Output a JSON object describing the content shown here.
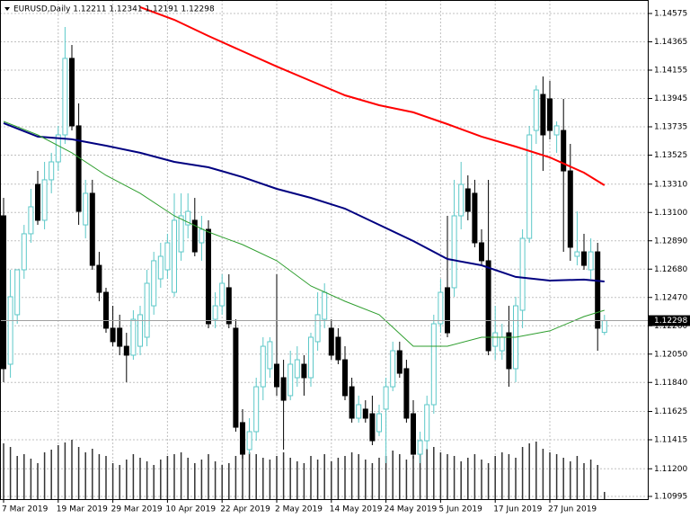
{
  "chart_data": {
    "type": "candlestick",
    "header": "EURUSD,Daily  1.12211 1.12341 1.12191 1.12298",
    "ylim": [
      1.10975,
      1.14675
    ],
    "yticks": [
      1.14575,
      1.14365,
      1.14155,
      1.13945,
      1.13735,
      1.13525,
      {
        "value": 1.1331,
        "label": "1.13310"
      },
      {
        "value": 1.131,
        "label": "1.13100"
      },
      {
        "value": 1.1289,
        "label": "1.12890"
      },
      {
        "value": 1.1268,
        "label": "1.12680"
      },
      {
        "value": 1.1247,
        "label": "1.12470"
      },
      {
        "value": 1.1226,
        "label": "1.12260"
      },
      {
        "value": 1.1205,
        "label": "1.12050"
      },
      {
        "value": 1.1184,
        "label": "1.11840"
      },
      1.11625,
      1.11415,
      {
        "value": 1.112,
        "label": "1.11200"
      },
      1.10995
    ],
    "xticks": [
      {
        "value": 0,
        "label": "7 Mar 2019"
      },
      {
        "value": 8,
        "label": "19 Mar 2019"
      },
      {
        "value": 16,
        "label": "29 Mar 2019"
      },
      {
        "value": 24,
        "label": "10 Apr 2019"
      },
      {
        "value": 32,
        "label": "22 Apr 2019"
      },
      {
        "value": 40,
        "label": "2 May 2019"
      },
      {
        "value": 48,
        "label": "14 May 2019"
      },
      {
        "value": 56,
        "label": "24 May 2019"
      },
      {
        "value": 64,
        "label": "5 Jun 2019"
      },
      {
        "value": 72,
        "label": "17 Jun 2019"
      },
      {
        "value": 80,
        "label": "27 Jun 2019"
      }
    ],
    "grid": true,
    "bull_color": "#5cc8c8",
    "bear_color": "#000000",
    "candles": {
      "open": [
        1.13075,
        1.11975,
        1.12342,
        1.12675,
        1.12942,
        1.13308,
        1.13042,
        1.13342,
        1.13475,
        1.13675,
        1.14242,
        1.13742,
        1.13008,
        1.13242,
        1.12708,
        1.12508,
        1.12242,
        1.12242,
        1.12108,
        1.12042,
        1.12108,
        1.12175,
        1.12408,
        1.12608,
        1.12675,
        1.12508,
        1.12808,
        1.13008,
        1.13042,
        1.12875,
        1.12975,
        1.12308,
        1.12408,
        1.12542,
        1.12242,
        1.11542,
        1.11342,
        1.11475,
        1.11808,
        1.11942,
        1.11975,
        1.11875,
        1.11742,
        1.11875,
        1.11975,
        1.11875,
        1.12142,
        1.12308,
        1.12242,
        1.12175,
        1.12008,
        1.11808,
        1.11575,
        1.11642,
        1.11608,
        1.11475,
        1.11642,
        1.11808,
        1.12075,
        1.11942,
        1.11608,
        1.11308,
        1.11408,
        1.11675,
        1.12275,
        1.12542,
        1.12542,
        1.13075,
        1.13275,
        1.13242,
        1.12875,
        1.12742,
        1.12108,
        1.12075,
        1.12208,
        1.11942,
        1.12375,
        1.12908,
        1.13708,
        1.13975,
        1.13942,
        1.13675,
        1.13708,
        1.13408,
        1.12775,
        1.12808,
        1.12675,
        1.12808,
        1.12211
      ],
      "high": [
        1.13208,
        1.12675,
        1.12675,
        1.13008,
        1.13275,
        1.13408,
        1.13475,
        1.13542,
        1.13742,
        1.14475,
        1.14342,
        1.13908,
        1.13342,
        1.13342,
        1.12808,
        1.12542,
        1.12408,
        1.12342,
        1.12208,
        1.12375,
        1.12408,
        1.12675,
        1.12808,
        1.12875,
        1.12942,
        1.13242,
        1.13242,
        1.13242,
        1.13208,
        1.13075,
        1.13042,
        1.12508,
        1.12642,
        1.12642,
        1.12308,
        1.11642,
        1.11575,
        1.11875,
        1.12175,
        1.12175,
        1.12642,
        1.12008,
        1.12075,
        1.12108,
        1.12042,
        1.12208,
        1.12508,
        1.12575,
        1.12308,
        1.12242,
        1.12108,
        1.11875,
        1.11742,
        1.11708,
        1.11742,
        1.11675,
        1.11875,
        1.12142,
        1.12142,
        1.12008,
        1.11708,
        1.11475,
        1.11742,
        1.12342,
        1.12608,
        1.13075,
        1.13342,
        1.13475,
        1.13375,
        1.13342,
        1.12975,
        1.13342,
        1.12408,
        1.12275,
        1.12408,
        1.12475,
        1.12975,
        1.13742,
        1.14042,
        1.14108,
        1.14075,
        1.13775,
        1.13942,
        1.13608,
        1.13108,
        1.12942,
        1.12908,
        1.12875,
        1.12341
      ],
      "low": [
        1.11842,
        1.11875,
        1.12275,
        1.12608,
        1.12875,
        1.13008,
        1.12975,
        1.13242,
        1.13408,
        1.13608,
        1.13708,
        1.13008,
        1.12908,
        1.12675,
        1.12442,
        1.12208,
        1.12108,
        1.12042,
        1.11842,
        1.12008,
        1.12042,
        1.12108,
        1.12342,
        1.12542,
        1.12608,
        1.12475,
        1.12742,
        1.12908,
        1.12775,
        1.12742,
        1.12242,
        1.12242,
        1.12342,
        1.12242,
        1.11475,
        1.11275,
        1.11308,
        1.11408,
        1.11708,
        1.11875,
        1.11742,
        1.11342,
        1.11708,
        1.11808,
        1.11742,
        1.11808,
        1.12075,
        1.12242,
        1.12008,
        1.11975,
        1.11708,
        1.11542,
        1.11542,
        1.11542,
        1.11375,
        1.11442,
        1.11242,
        1.11775,
        1.11875,
        1.11542,
        1.11275,
        1.11242,
        1.11342,
        1.11608,
        1.12208,
        1.12175,
        1.12475,
        1.12975,
        1.13042,
        1.12842,
        1.12708,
        1.12042,
        1.12008,
        1.12008,
        1.11808,
        1.11842,
        1.12242,
        1.12875,
        1.13608,
        1.13408,
        1.13642,
        1.13542,
        1.12808,
        1.12742,
        1.12708,
        1.12675,
        1.12608,
        1.12075,
        1.12191
      ],
      "close": [
        1.11942,
        1.12475,
        1.12675,
        1.12942,
        1.13142,
        1.13042,
        1.13342,
        1.13475,
        1.13675,
        1.14242,
        1.13742,
        1.13108,
        1.13242,
        1.12708,
        1.12508,
        1.12242,
        1.12142,
        1.12108,
        1.12042,
        1.12308,
        1.12342,
        1.12575,
        1.12742,
        1.12775,
        1.12875,
        1.13042,
        1.13075,
        1.13108,
        1.12808,
        1.12975,
        1.12275,
        1.12408,
        1.12575,
        1.12275,
        1.11508,
        1.11308,
        1.11475,
        1.11808,
        1.12108,
        1.12142,
        1.11808,
        1.11708,
        1.11975,
        1.12008,
        1.11875,
        1.12175,
        1.12342,
        1.12508,
        1.12042,
        1.12008,
        1.11742,
        1.11575,
        1.11675,
        1.11575,
        1.11408,
        1.11608,
        1.11808,
        1.12075,
        1.11908,
        1.11575,
        1.11308,
        1.11408,
        1.11675,
        1.12275,
        1.12508,
        1.12208,
        1.13075,
        1.13308,
        1.13108,
        1.12875,
        1.12742,
        1.12075,
        1.12208,
        1.12175,
        1.11942,
        1.12408,
        1.12908,
        1.13675,
        1.14008,
        1.13675,
        1.13708,
        1.13742,
        1.13408,
        1.12842,
        1.12808,
        1.12708,
        1.12808,
        1.12242,
        1.12298
      ]
    },
    "series": [
      {
        "color": "#ff0000",
        "x": [
          20,
          25,
          30,
          35,
          40,
          45,
          50,
          55,
          60,
          65,
          70,
          75,
          80,
          85,
          88
        ],
        "values": [
          1.14622,
          1.14528,
          1.14408,
          1.14295,
          1.14182,
          1.14075,
          1.13968,
          1.13895,
          1.13842,
          1.13755,
          1.13662,
          1.13588,
          1.13508,
          1.13395,
          1.13302
        ]
      },
      {
        "color": "#000080",
        "x": [
          0,
          5,
          10,
          15,
          20,
          25,
          30,
          35,
          40,
          45,
          50,
          55,
          60,
          65,
          70,
          75,
          80,
          85,
          88
        ],
        "values": [
          1.13762,
          1.13662,
          1.13642,
          1.13595,
          1.13542,
          1.13475,
          1.13435,
          1.13362,
          1.13275,
          1.13208,
          1.13128,
          1.13008,
          1.12888,
          1.12755,
          1.12708,
          1.12622,
          1.12595,
          1.12602,
          1.12588
        ]
      },
      {
        "color": "#2e9e2e",
        "x": [
          0,
          5,
          10,
          15,
          20,
          25,
          30,
          35,
          40,
          45,
          50,
          55,
          60,
          65,
          70,
          75,
          80,
          85,
          88
        ],
        "values": [
          1.13775,
          1.13675,
          1.13542,
          1.13375,
          1.13242,
          1.13075,
          1.12955,
          1.12862,
          1.12742,
          1.12555,
          1.12442,
          1.12342,
          1.12108,
          1.12108,
          1.12175,
          1.12175,
          1.12222,
          1.12328,
          1.12375
        ]
      }
    ],
    "volumes": [
      62,
      58,
      48,
      50,
      45,
      40,
      52,
      55,
      60,
      63,
      66,
      58,
      52,
      56,
      50,
      48,
      40,
      38,
      44,
      50,
      46,
      42,
      38,
      44,
      48,
      50,
      52,
      46,
      40,
      44,
      50,
      42,
      38,
      40,
      48,
      60,
      52,
      50,
      46,
      44,
      48,
      52,
      46,
      42,
      40,
      48,
      44,
      50,
      42,
      46,
      48,
      52,
      50,
      44,
      40,
      46,
      48,
      54,
      50,
      44,
      48,
      60,
      56,
      58,
      52,
      50,
      48,
      42,
      46,
      50,
      44,
      40,
      48,
      52,
      50,
      46,
      58,
      62,
      64,
      56,
      52,
      50,
      46,
      42,
      48,
      40,
      44,
      38,
      8
    ],
    "volume_color": "#333333",
    "last_price": 1.12298
  }
}
